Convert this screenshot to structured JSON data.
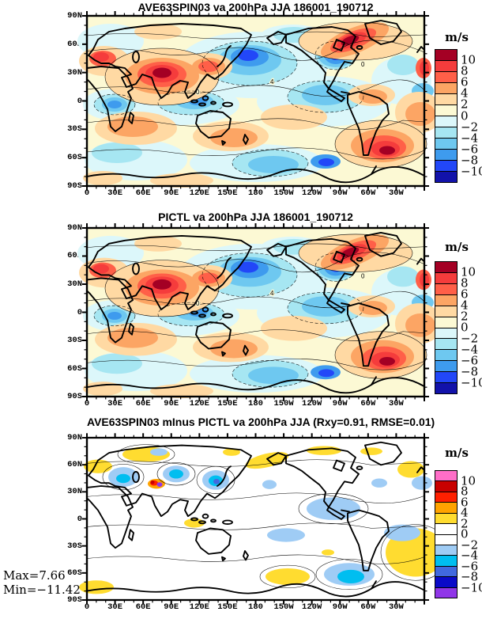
{
  "chart_data": [
    {
      "type": "heatmap",
      "title": "AVE63SPIN03 va 200hPa JJA 186001_190712",
      "units": "m/s",
      "lat_ticks": [
        "90N",
        "60N",
        "30N",
        "0",
        "30S",
        "60S",
        "90S"
      ],
      "lon_ticks": [
        "0",
        "30E",
        "60E",
        "90E",
        "120E",
        "150E",
        "180",
        "150W",
        "120W",
        "90W",
        "60W",
        "30W"
      ],
      "lat_range": [
        "90S",
        "90N"
      ],
      "lon_range": [
        "0",
        "360"
      ],
      "contour_labels": [
        "0",
        "4",
        "0"
      ],
      "colorbar": {
        "units": "m/s",
        "levels": [
          10,
          8,
          6,
          4,
          2,
          0,
          -2,
          -4,
          -6,
          -8,
          -10
        ],
        "labels": [
          "10",
          "8",
          "6",
          "4",
          "2",
          "0",
          "−2",
          "−4",
          "−6",
          "−8",
          "−10"
        ],
        "colors": [
          "#A40024",
          "#F53C3C",
          "#FF5F48",
          "#FCA564",
          "#FFD9A3",
          "#FCF9D4",
          "#DCF7FA",
          "#A6E6F2",
          "#6EC8F0",
          "#3E9BEE",
          "#2247F8",
          "#1212AA"
        ]
      }
    },
    {
      "type": "heatmap",
      "title": "PICTL va 200hPa JJA 186001_190712",
      "units": "m/s",
      "lat_ticks": [
        "90N",
        "60N",
        "30N",
        "0",
        "30S",
        "60S",
        "90S"
      ],
      "lon_ticks": [
        "0",
        "30E",
        "60E",
        "90E",
        "120E",
        "150E",
        "180",
        "150W",
        "120W",
        "90W",
        "60W",
        "30W"
      ],
      "lat_range": [
        "90S",
        "90N"
      ],
      "lon_range": [
        "0",
        "360"
      ],
      "contour_labels": [
        "0",
        "4",
        "0"
      ],
      "colorbar": {
        "units": "m/s",
        "levels": [
          10,
          8,
          6,
          4,
          2,
          0,
          -2,
          -4,
          -6,
          -8,
          -10
        ],
        "labels": [
          "10",
          "8",
          "6",
          "4",
          "2",
          "0",
          "−2",
          "−4",
          "−6",
          "−8",
          "−10"
        ],
        "colors": [
          "#A40024",
          "#F53C3C",
          "#FF5F48",
          "#FCA564",
          "#FFD9A3",
          "#FCF9D4",
          "#DCF7FA",
          "#A6E6F2",
          "#6EC8F0",
          "#3E9BEE",
          "#2247F8",
          "#1212AA"
        ]
      }
    },
    {
      "type": "heatmap",
      "title": "AVE63SPIN03 mInus PICTL va 200hPa JJA (Rxy=0.91, RMSE=0.01)",
      "units": "m/s",
      "lat_ticks": [
        "90N",
        "60N",
        "30N",
        "0",
        "30S",
        "60S",
        "90S"
      ],
      "lon_ticks": [
        "0",
        "30E",
        "60E",
        "90E",
        "120E",
        "150E",
        "180",
        "150W",
        "120W",
        "90W",
        "60W",
        "30W"
      ],
      "lat_range": [
        "90S",
        "90N"
      ],
      "lon_range": [
        "0",
        "360"
      ],
      "annotations": {
        "max": "Max=7.66",
        "min": "Min=−11.42"
      },
      "colorbar": {
        "units": "m/s",
        "levels": [
          10,
          8,
          6,
          4,
          2,
          0,
          -2,
          -4,
          -6,
          -8,
          -10
        ],
        "labels": [
          "10",
          "8",
          "6",
          "4",
          "2",
          "0",
          "−2",
          "−4",
          "−6",
          "−8",
          "−10"
        ],
        "colors": [
          "#FF6EC8",
          "#C80000",
          "#FF2000",
          "#FFA300",
          "#FFDC30",
          "#FFFFFF",
          "#FFFFFF",
          "#9FCCF5",
          "#00BEF0",
          "#4169DF",
          "#0A0AC8",
          "#9036E8"
        ]
      }
    }
  ]
}
